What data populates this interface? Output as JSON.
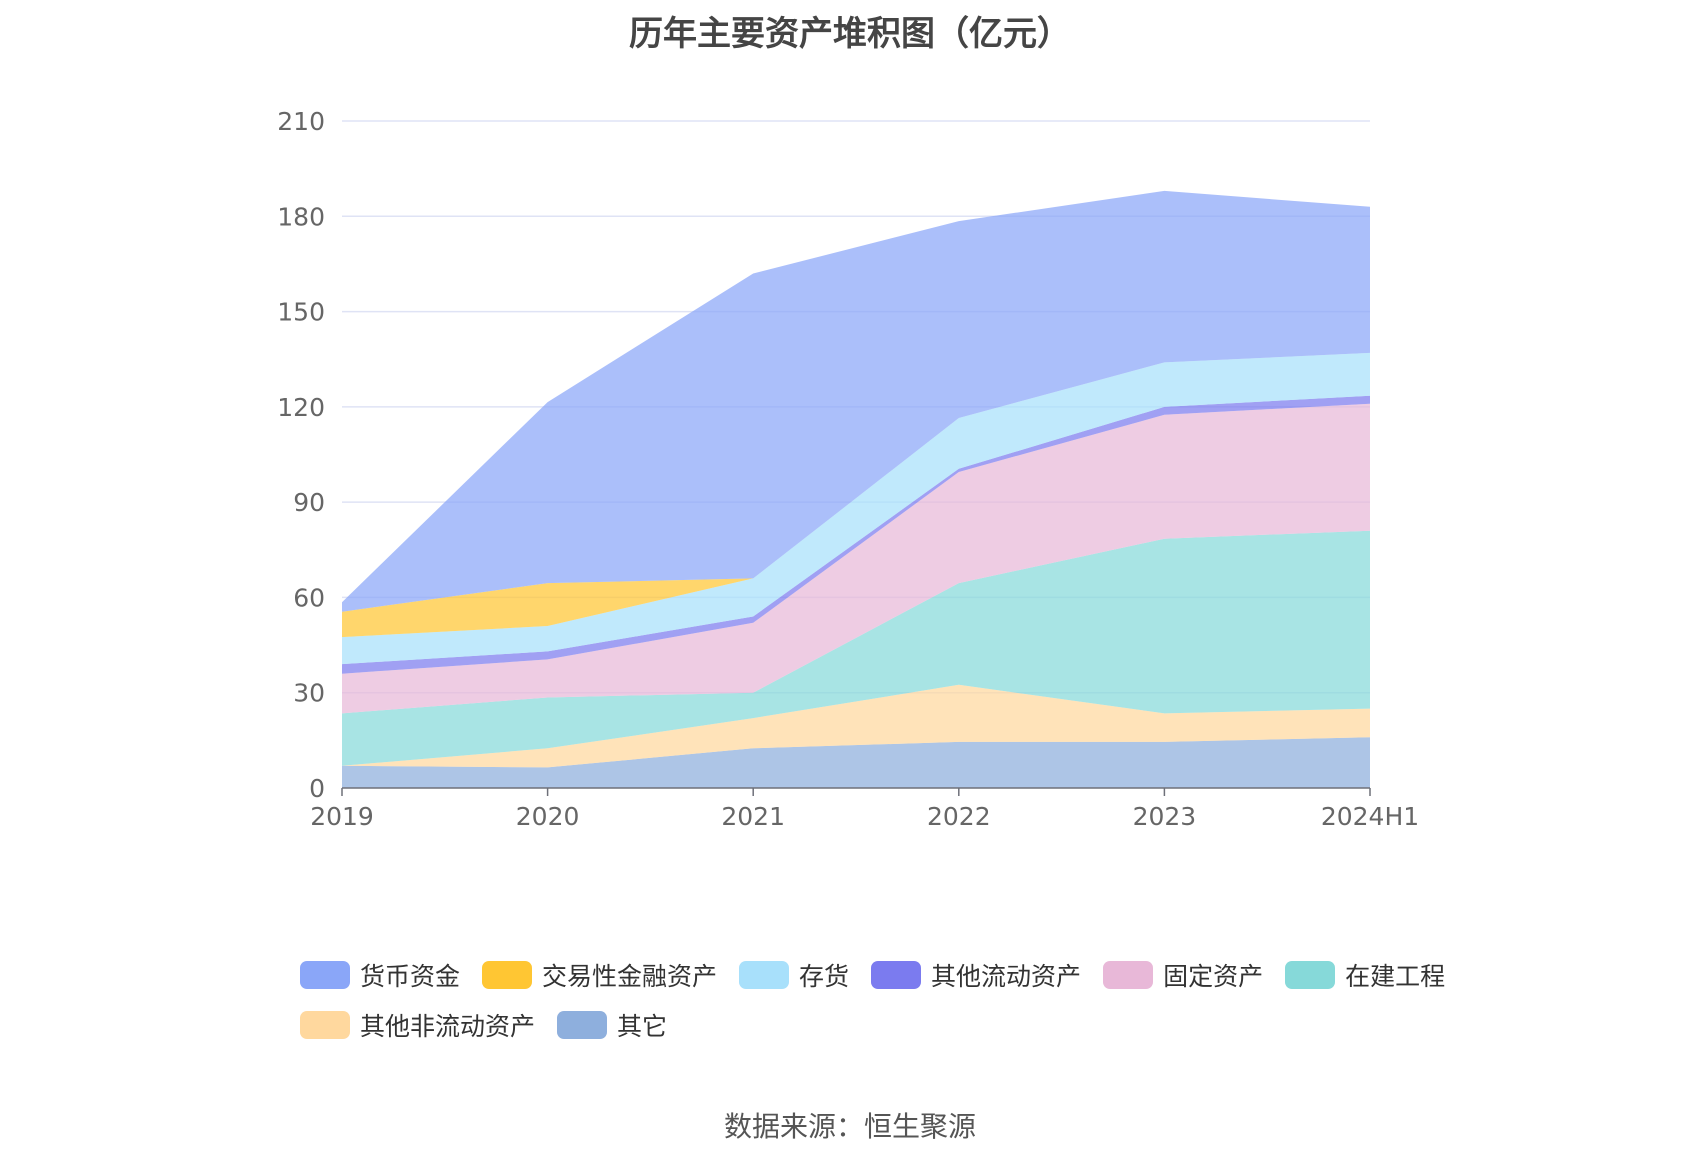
{
  "title": "历年主要资产堆积图（亿元）",
  "source": "数据来源：恒生聚源",
  "chart_data": {
    "type": "area",
    "stacked": true,
    "title": "历年主要资产堆积图（亿元）",
    "categories": [
      "2019",
      "2020",
      "2021",
      "2022",
      "2023",
      "2024H1"
    ],
    "ylim": [
      0,
      210
    ],
    "yticks": [
      0,
      30,
      60,
      90,
      120,
      150,
      180,
      210
    ],
    "grid": true,
    "legend_position": "bottom",
    "series": [
      {
        "name": "其它",
        "color": "#8eafdd",
        "values": [
          7,
          6.5,
          12.5,
          14.5,
          14.5,
          16
        ]
      },
      {
        "name": "其他非流动资产",
        "color": "#ffd89e",
        "values": [
          0,
          6,
          9.5,
          18,
          9,
          9
        ]
      },
      {
        "name": "在建工程",
        "color": "#86d9d9",
        "values": [
          16.5,
          16,
          8,
          32,
          55,
          56
        ]
      },
      {
        "name": "固定资产",
        "color": "#e8b8d8",
        "values": [
          12.5,
          12,
          22,
          35,
          39,
          40
        ]
      },
      {
        "name": "其他流动资产",
        "color": "#7b7bef",
        "values": [
          3,
          2.5,
          2,
          1,
          2.5,
          2.5
        ]
      },
      {
        "name": "存货",
        "color": "#a8e0fb",
        "values": [
          8.5,
          8,
          12,
          16,
          14,
          13.5
        ]
      },
      {
        "name": "交易性金融资产",
        "color": "#ffc633",
        "values": [
          8,
          13.5,
          0,
          0,
          0,
          0
        ]
      },
      {
        "name": "货币资金",
        "color": "#8aa6f8",
        "values": [
          3,
          57,
          96,
          62,
          54,
          46
        ]
      }
    ]
  },
  "legend": [
    {
      "label": "货币资金",
      "color": "#8aa6f8"
    },
    {
      "label": "交易性金融资产",
      "color": "#ffc633"
    },
    {
      "label": "存货",
      "color": "#a8e0fb"
    },
    {
      "label": "其他流动资产",
      "color": "#7b7bef"
    },
    {
      "label": "固定资产",
      "color": "#e8b8d8"
    },
    {
      "label": "在建工程",
      "color": "#86d9d9"
    },
    {
      "label": "其他非流动资产",
      "color": "#ffd89e"
    },
    {
      "label": "其它",
      "color": "#8eafdd"
    }
  ]
}
